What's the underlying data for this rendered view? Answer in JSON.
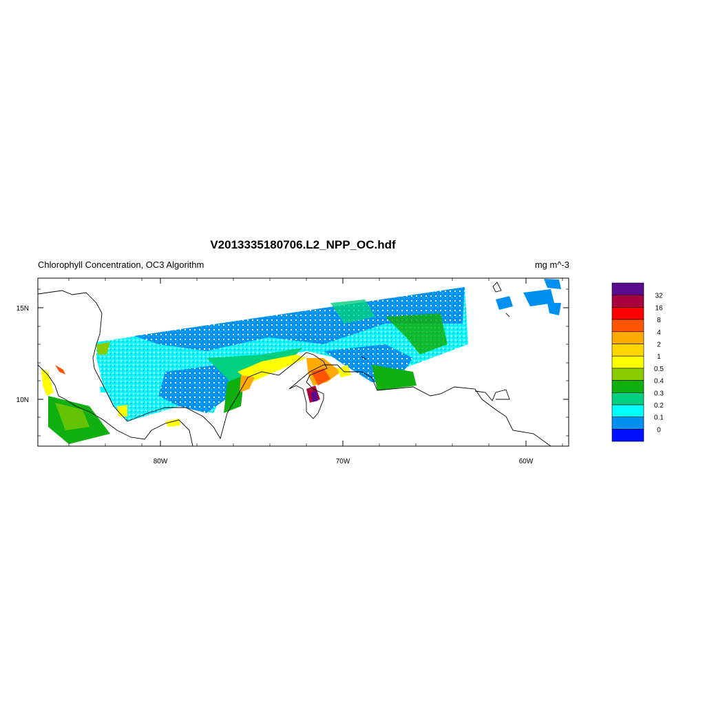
{
  "title": "V2013335180706.L2_NPP_OC.hdf",
  "subtitle_left": "Chlorophyll Concentration, OC3 Algorithm",
  "subtitle_right": "mg m^-3",
  "x_ticks": [
    "80W",
    "70W",
    "60W"
  ],
  "y_ticks": [
    "15N",
    "10N"
  ],
  "colorbar": {
    "labels": [
      "32",
      "16",
      "8",
      "4",
      "2",
      "1",
      "0.5",
      "0.4",
      "0.3",
      "0.2",
      "0.1",
      "0"
    ],
    "colors": [
      "#5a0a8c",
      "#a8003c",
      "#ff0000",
      "#ff5500",
      "#ffaa00",
      "#ffd700",
      "#ffff00",
      "#88cc00",
      "#10b010",
      "#00d080",
      "#00ffff",
      "#0090f0",
      "#0010ff"
    ]
  },
  "map_colors": {
    "coast": "#000000",
    "low": "#0090f0",
    "cyan": "#00ffff",
    "mint": "#00d080",
    "green": "#10b010",
    "lime": "#88cc00",
    "yellow": "#ffff00",
    "orange": "#ffaa00",
    "red": "#ff0000",
    "purple": "#5a0a8c"
  }
}
